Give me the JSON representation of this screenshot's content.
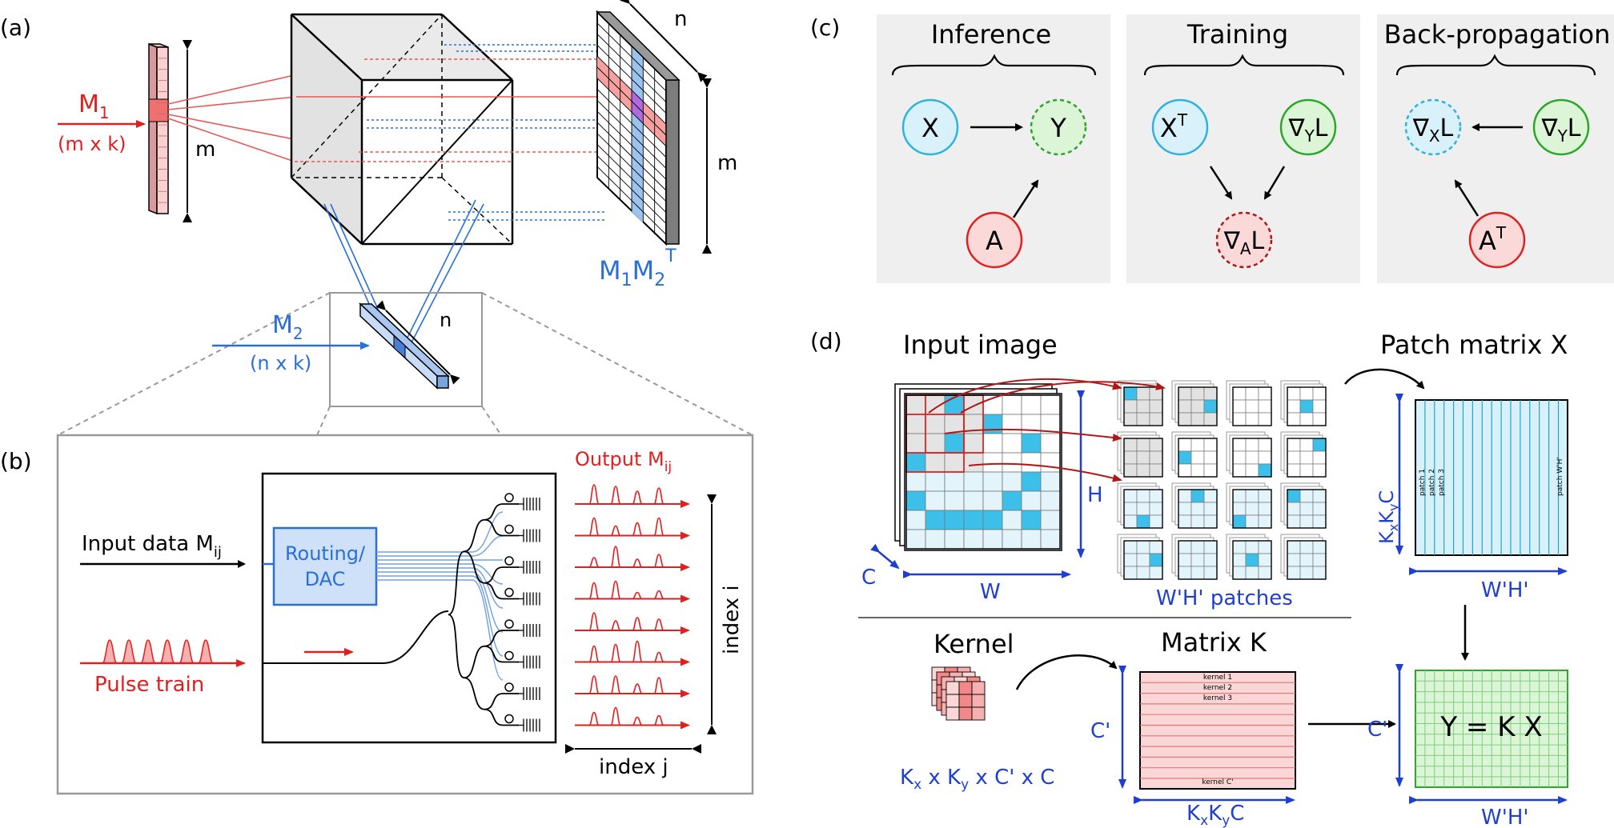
{
  "panel_labels": {
    "a": "(a)",
    "b": "(b)",
    "c": "(c)",
    "d": "(d)"
  },
  "colors": {
    "red": "#e01f1f",
    "blue": "#1f3fd0",
    "mid_blue": "#2a6fd6",
    "cyan": "#2fb3dc",
    "green": "#2aa82a",
    "panel_gray": "#efefef"
  },
  "a": {
    "m1": "M",
    "m1_sub": "1",
    "m1_dims": "(m x k)",
    "m_left": "m",
    "m2": "M",
    "m2_sub": "2",
    "m2_dims": "(n x k)",
    "n_small": "n",
    "n_top": "n",
    "m_right": "m",
    "product_a": "M",
    "product_sub1": "1",
    "product_b": "M",
    "product_sub2": "2",
    "product_sup": "T"
  },
  "b": {
    "input_label": "Input data M",
    "input_sub": "ij",
    "routing_line1": "Routing/",
    "routing_line2": "DAC",
    "pulse_label": "Pulse train",
    "output_label": "Output M",
    "output_sub": "ij",
    "index_i": "index i",
    "index_j": "index j"
  },
  "c": {
    "titles": [
      "Inference",
      "Training",
      "Back-propagation"
    ],
    "inference": {
      "x": "X",
      "y": "Y",
      "a": "A"
    },
    "training": {
      "xt_base": "X",
      "xt_sup": "T",
      "gy_base": "∇",
      "gy_sub": "Y",
      "gy_tail": "L",
      "ga_base": "∇",
      "ga_sub": "A",
      "ga_tail": "L"
    },
    "backprop": {
      "gx_base": "∇",
      "gx_sub": "X",
      "gx_tail": "L",
      "gy_base": "∇",
      "gy_sub": "Y",
      "gy_tail": "L",
      "at_base": "A",
      "at_sup": "T"
    }
  },
  "d": {
    "input_image": "Input image",
    "h_label": "H",
    "w_label": "W",
    "c_label": "C",
    "patches_label": "W'H' patches",
    "patch_matrix": "Patch matrix X",
    "patch_y_base": "K",
    "patch_y_sub1": "x",
    "patch_y_mid": "K",
    "patch_y_sub2": "y",
    "patch_y_tail": "C",
    "patch_cols": [
      "patch 1",
      "patch 2",
      "patch 3"
    ],
    "patch_last": "patch W'H'",
    "patch_w": "W'H'",
    "kernel_title": "Kernel",
    "kernel_dims_parts": [
      "K",
      "x",
      " x K",
      "y",
      " x C' x C"
    ],
    "matrix_k": "Matrix K",
    "kernel_rows": [
      "kernel 1",
      "kernel 2",
      "kernel 3"
    ],
    "kernel_last": "kernel C'",
    "k_cprime": "C'",
    "k_bottom_parts": [
      "K",
      "x",
      "K",
      "y",
      "C"
    ],
    "y_eq": "Y = K X",
    "y_cprime": "C'",
    "y_bottom": "W'H'"
  }
}
